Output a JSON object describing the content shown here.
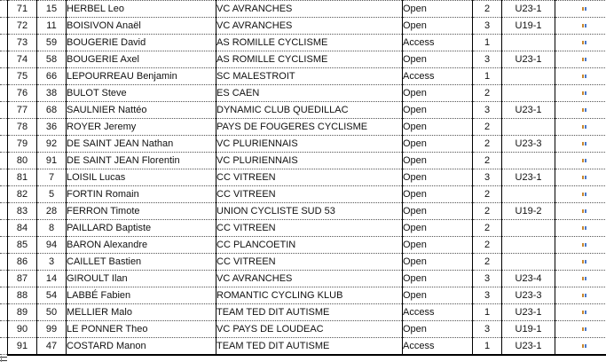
{
  "colors": {
    "text": "#111111",
    "border_solid": "#000000",
    "border_dotted": "#555555",
    "ditto_orange": "#c8872e",
    "ditto_blue": "#4a78c8"
  },
  "icons": {
    "ditto_mark": "\""
  },
  "table": {
    "rows": [
      {
        "rank": "71",
        "bib": "15",
        "name": "HERBEL Leo",
        "club": "VC AVRANCHES",
        "category": "Open",
        "level": "2",
        "series": "U23-1"
      },
      {
        "rank": "72",
        "bib": "11",
        "name": "BOISIVON Anaël",
        "club": "VC AVRANCHES",
        "category": "Open",
        "level": "3",
        "series": "U19-1"
      },
      {
        "rank": "73",
        "bib": "59",
        "name": "BOUGERIE David",
        "club": "AS ROMILLE CYCLISME",
        "category": "Access",
        "level": "1",
        "series": ""
      },
      {
        "rank": "74",
        "bib": "58",
        "name": "BOUGERIE Axel",
        "club": "AS ROMILLE CYCLISME",
        "category": "Open",
        "level": "3",
        "series": "U23-1"
      },
      {
        "rank": "75",
        "bib": "66",
        "name": "LEPOURREAU Benjamin",
        "club": "SC MALESTROIT",
        "category": "Access",
        "level": "1",
        "series": ""
      },
      {
        "rank": "76",
        "bib": "38",
        "name": "BULOT Steve",
        "club": "ES CAEN",
        "category": "Open",
        "level": "2",
        "series": ""
      },
      {
        "rank": "77",
        "bib": "68",
        "name": "SAULNIER Nattéo",
        "club": "DYNAMIC CLUB QUEDILLAC",
        "category": "Open",
        "level": "3",
        "series": "U23-1"
      },
      {
        "rank": "78",
        "bib": "36",
        "name": "ROYER Jeremy",
        "club": "PAYS DE FOUGERES CYCLISME",
        "category": "Open",
        "level": "2",
        "series": ""
      },
      {
        "rank": "79",
        "bib": "92",
        "name": "DE SAINT JEAN Nathan",
        "club": "VC PLURIENNAIS",
        "category": "Open",
        "level": "2",
        "series": "U23-3"
      },
      {
        "rank": "80",
        "bib": "91",
        "name": "DE SAINT JEAN Florentin",
        "club": "VC PLURIENNAIS",
        "category": "Open",
        "level": "2",
        "series": ""
      },
      {
        "rank": "81",
        "bib": "7",
        "name": "LOISIL Lucas",
        "club": "CC VITREEN",
        "category": "Open",
        "level": "3",
        "series": "U23-1"
      },
      {
        "rank": "82",
        "bib": "5",
        "name": "FORTIN Romain",
        "club": "CC VITREEN",
        "category": "Open",
        "level": "2",
        "series": ""
      },
      {
        "rank": "83",
        "bib": "28",
        "name": "FERRON Timote",
        "club": "UNION CYCLISTE SUD 53",
        "category": "Open",
        "level": "2",
        "series": "U19-2"
      },
      {
        "rank": "84",
        "bib": "8",
        "name": "PAILLARD Baptiste",
        "club": "CC VITREEN",
        "category": "Open",
        "level": "2",
        "series": ""
      },
      {
        "rank": "85",
        "bib": "94",
        "name": "BARON Alexandre",
        "club": "CC PLANCOETIN",
        "category": "Open",
        "level": "2",
        "series": ""
      },
      {
        "rank": "86",
        "bib": "3",
        "name": "CAILLET Bastien",
        "club": "CC VITREEN",
        "category": "Open",
        "level": "2",
        "series": ""
      },
      {
        "rank": "87",
        "bib": "14",
        "name": "GIROULT Ilan",
        "club": "VC AVRANCHES",
        "category": "Open",
        "level": "3",
        "series": "U23-4"
      },
      {
        "rank": "88",
        "bib": "54",
        "name": "LABBÉ Fabien",
        "club": "ROMANTIC CYCLING KLUB",
        "category": "Open",
        "level": "3",
        "series": "U23-3"
      },
      {
        "rank": "89",
        "bib": "50",
        "name": "MELLIER Malo",
        "club": "TEAM TED DIT AUTISME",
        "category": "Access",
        "level": "1",
        "series": "U23-1"
      },
      {
        "rank": "90",
        "bib": "99",
        "name": "LE PONNER Theo",
        "club": "VC PAYS DE LOUDEAC",
        "category": "Open",
        "level": "3",
        "series": "U19-1"
      },
      {
        "rank": "91",
        "bib": "47",
        "name": "COSTARD Manon",
        "club": "TEAM TED DIT AUTISME",
        "category": "Access",
        "level": "1",
        "series": "U23-1"
      }
    ]
  }
}
